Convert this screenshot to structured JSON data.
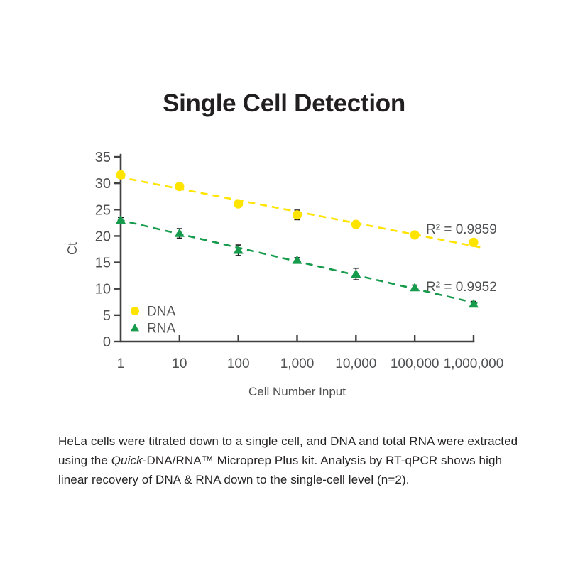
{
  "page": {
    "title": "Single Cell Detection",
    "background_color": "#ffffff"
  },
  "chart_data": {
    "type": "scatter",
    "x_scale": "log10",
    "x_values": [
      1,
      10,
      100,
      1000,
      10000,
      100000,
      1000000
    ],
    "x_tick_labels": [
      "1",
      "10",
      "100",
      "1,000",
      "10,000",
      "100,000",
      "1,000,000"
    ],
    "xlabel": "Cell Number Input",
    "ylabel": "Ct",
    "ylim": [
      0,
      35
    ],
    "y_ticks": [
      0,
      5,
      10,
      15,
      20,
      25,
      30,
      35
    ],
    "grid": false,
    "legend_position": "inside-bottom-left",
    "series": [
      {
        "name": "DNA",
        "marker": "circle",
        "color": "#ffe400",
        "values": [
          31.6,
          29.4,
          26.1,
          24.0,
          22.2,
          20.2,
          18.8
        ],
        "errors": [
          0.5,
          0.4,
          0.5,
          0.9,
          0.6,
          0.4,
          0.3
        ],
        "trendline": "dashed-linear-fit",
        "r2_label": "R² = 0.9859"
      },
      {
        "name": "RNA",
        "marker": "triangle",
        "color": "#159b4b",
        "values": [
          23.0,
          20.5,
          17.3,
          15.4,
          12.8,
          10.2,
          7.1
        ],
        "errors": [
          0.5,
          0.9,
          1.0,
          0.5,
          1.1,
          0.5,
          0.5
        ],
        "trendline": "dashed-linear-fit",
        "r2_label": "R² = 0.9952"
      }
    ]
  },
  "caption": {
    "segments": [
      {
        "text": "HeLa cells were titrated down to a single cell, and DNA and total RNA were extracted using the ",
        "italic": false
      },
      {
        "text": "Quick",
        "italic": true
      },
      {
        "text": "-DNA/RNA™ Microprep Plus kit. Analysis by RT-qPCR shows high linear recovery of DNA & RNA down to the single-cell level (n=2).",
        "italic": false
      }
    ]
  },
  "colors": {
    "axis": "#414042",
    "tick_text": "#4f5052",
    "label_text": "#4f5052",
    "error_bar": "#1f1c1d",
    "dna_yellow": "#ffe400",
    "rna_green": "#159b4b",
    "title_text": "#221f20"
  }
}
